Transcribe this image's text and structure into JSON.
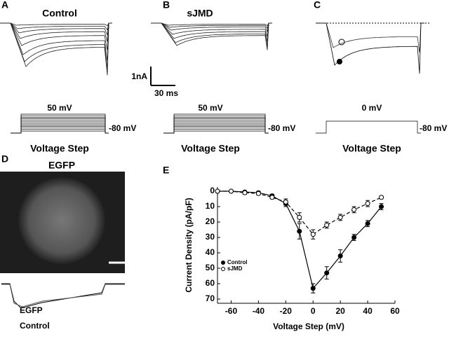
{
  "panels": {
    "a": {
      "letter": "A",
      "title": "Control",
      "scale_current": "1nA",
      "scale_time": "30 ms",
      "step_label": "50 mV",
      "hold_label": "-80 mV",
      "caption": "Voltage Step"
    },
    "b": {
      "letter": "B",
      "title": "sJMD",
      "step_label": "50 mV",
      "hold_label": "-80 mV",
      "caption": "Voltage Step"
    },
    "c": {
      "letter": "C",
      "step_label": "0 mV",
      "hold_label": "-80 mV",
      "caption": "Voltage Step"
    },
    "d": {
      "letter": "D",
      "title": "EGFP",
      "trace_egfp": "EGFP",
      "trace_control": "Control"
    },
    "e": {
      "letter": "E"
    }
  },
  "chart_data": {
    "type": "line",
    "x_label": "Voltage Step (mV)",
    "y_label": "Current Density (pA/pF)",
    "x": [
      -70,
      -60,
      -50,
      -40,
      -30,
      -20,
      -10,
      0,
      10,
      20,
      30,
      40,
      50
    ],
    "series": [
      {
        "name": "Control",
        "color": "#000000",
        "marker": "filled",
        "dashed": false,
        "values": [
          0,
          0,
          0.5,
          1,
          3,
          8,
          26,
          63,
          53,
          42,
          30,
          21,
          10
        ],
        "errors": [
          0.5,
          0.5,
          0.5,
          1,
          1,
          2,
          5,
          3,
          4,
          4,
          2,
          2,
          2
        ]
      },
      {
        "name": "sJMD",
        "color": "#000000",
        "marker": "open",
        "dashed": true,
        "values": [
          0,
          0,
          1,
          1.5,
          4,
          7,
          17,
          28,
          22,
          17,
          12,
          8,
          4
        ],
        "errors": [
          0.5,
          0.5,
          1,
          1,
          1,
          2,
          3,
          3,
          2,
          2,
          2,
          2,
          1
        ]
      }
    ],
    "xlim": [
      -70,
      60
    ],
    "xticks": [
      -60,
      -40,
      -20,
      0,
      20,
      40,
      60
    ],
    "ylim": [
      0,
      70
    ],
    "yticks": [
      0,
      10,
      20,
      30,
      40,
      50,
      60,
      70
    ],
    "y_inverted": true,
    "legend": "lower-left"
  }
}
